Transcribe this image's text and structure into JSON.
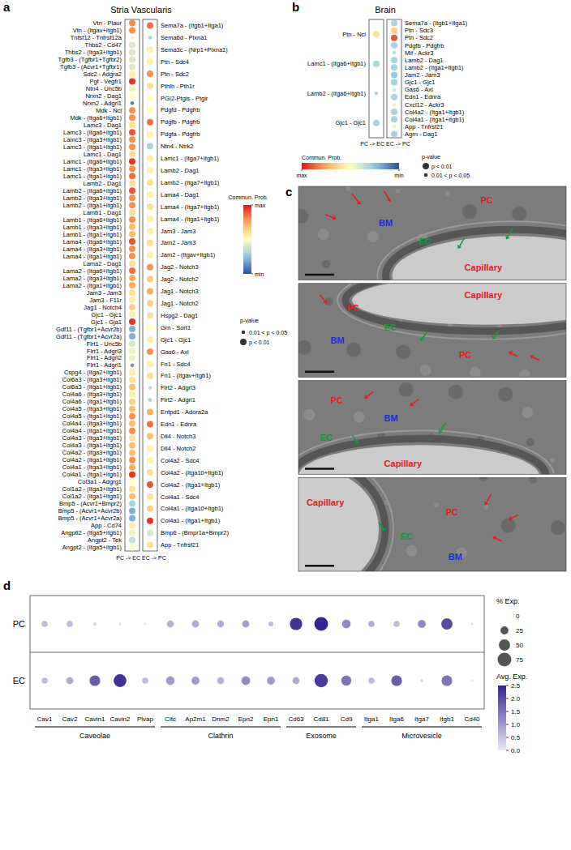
{
  "chart_data": [
    {
      "type": "dot",
      "label": "a",
      "title": "Stria Vascularis",
      "series": [
        {
          "name": "PC -> EC",
          "categories": [
            "Vtn - Plaur",
            "Vtn - (Itgav+Itgb1)",
            "Tnfsf12 - Tnfrsf12a",
            "Thbs2 - Cd47",
            "Thbs2 - (Itga3+Itgb1)",
            "Tgfb3 - (Tgfbr1+Tgfbr2)",
            "Tgfb3 - (Acvr1+Tgfbr1)",
            "Sdc2 - Adgra2",
            "Pgf - Vegfr1",
            "Ntn4 - Unc5b",
            "Nrxn2 - Dag1",
            "Nrxn2 - Adgrl1",
            "Mdk - Ncl",
            "Mdk - (Itga6+Itgb1)",
            "Lamc3 - Dag1",
            "Lamc3 - (Itga6+Itgb1)",
            "Lamc3 - (Itga3+Itgb1)",
            "Lamc3 - (Itga1+Itgb1)",
            "Lamc1 - Dag1",
            "Lamc1 - (Itga6+Itgb1)",
            "Lamc1 - (Itga3+Itgb1)",
            "Lamc1 - (Itga1+Itgb1)",
            "Lamb2 - Dag1",
            "Lamb2 - (Itga6+Itgb1)",
            "Lamb2 - (Itga3+Itgb1)",
            "Lamb2 - (Itga1+Itgb1)",
            "Lamb1 - Dag1",
            "Lamb1 - (Itga6+Itgb1)",
            "Lamb1 - (Itga3+Itgb1)",
            "Lamb1 - (Itga1+Itgb1)",
            "Lama4 - (Itga6+Itgb1)",
            "Lama4 - (Itga3+Itgb1)",
            "Lama4 - (Itga1+Itgb1)",
            "Lama2 - Dag1",
            "Lama2 - (Itga6+Itgb1)",
            "Lama2 - (Itga3+Itgb1)",
            "Lama2 - (Itga1+Itgb1)",
            "Jam3 - Jam3",
            "Jam3 - F11r",
            "Jag1 - Notch4",
            "Gjc1 - Gjc1",
            "Gjc1 - Gja1",
            "Gdf11 - (Tgfbr1+Acvr2b)",
            "Gdf11 - (Tgfbr1+Acvr2a)",
            "Flrt1 - Unc5b",
            "Flrt1 - Adgrl3",
            "Flrt1 - Adgrl2",
            "Flrt1 - Adgrl1",
            "Cspg4 - (Itga2+Itgb1)",
            "Col6a3 - (Itga3+Itgb1)",
            "Col6a3 - (Itga1+Itgb1)",
            "Col4a6 - (Itga3+Itgb1)",
            "Col4a6 - (Itga1+Itgb1)",
            "Col4a5 - (Itga3+Itgb1)",
            "Col4a5 - (Itga1+Itgb1)",
            "Col4a4 - (Itga3+Itgb1)",
            "Col4a4 - (Itga1+Itgb1)",
            "Col4a3 - (Itga3+Itgb1)",
            "Col4a3 - (Itga1+Itgb1)",
            "Col4a2 - (Itga3+Itgb1)",
            "Col4a2 - (Itga1+Itgb1)",
            "Col4a1 - (Itga3+Itgb1)",
            "Col4a1 - (Itga1+Itgb1)",
            "Col3a1 - Adgrg1",
            "Col1a2 - (Itga3+Itgb1)",
            "Col1a2 - (Itga1+Itgb1)",
            "Bmp5 - (Acvr1+Bmpr2)",
            "Bmp5 - (Acvr1+Acvr2b)",
            "Bmp5 - (Acvr1+Acvr2a)",
            "App - Cd74",
            "Angptl2 - (Itga5+Itgb1)",
            "Angpt2 - Tek",
            "Angpt2 - (Itga5+Itgb1)"
          ],
          "values": [
            0.8,
            0.8,
            0.45,
            0.4,
            0.4,
            0.4,
            0.4,
            0.55,
            0.95,
            0.45,
            0.5,
            0.1,
            0.8,
            0.8,
            0.6,
            0.9,
            0.8,
            0.8,
            0.6,
            0.95,
            0.8,
            0.85,
            0.6,
            0.9,
            0.8,
            0.8,
            0.6,
            0.8,
            0.7,
            0.7,
            0.9,
            0.8,
            0.8,
            0.6,
            0.85,
            0.75,
            0.75,
            0.6,
            0.55,
            0.65,
            0.55,
            0.95,
            0.2,
            0.2,
            0.4,
            0.45,
            0.45,
            0.15,
            0.55,
            0.6,
            0.7,
            0.55,
            0.65,
            0.7,
            0.8,
            0.7,
            0.8,
            0.6,
            0.7,
            0.7,
            0.8,
            0.75,
            0.95,
            0.5,
            0.6,
            0.7,
            0.3,
            0.2,
            0.2,
            0.55,
            0.45,
            0.35,
            0.5
          ],
          "p_class": [
            1,
            1,
            0,
            1,
            1,
            1,
            1,
            1,
            1,
            1,
            1,
            0,
            1,
            1,
            1,
            1,
            1,
            1,
            1,
            1,
            1,
            1,
            1,
            1,
            1,
            1,
            1,
            1,
            1,
            1,
            1,
            1,
            1,
            1,
            1,
            1,
            1,
            1,
            1,
            1,
            1,
            1,
            1,
            1,
            1,
            1,
            1,
            0,
            1,
            1,
            1,
            1,
            1,
            1,
            1,
            1,
            1,
            1,
            1,
            1,
            1,
            1,
            1,
            1,
            1,
            1,
            1,
            1,
            1,
            1,
            1,
            1,
            1
          ]
        },
        {
          "name": "EC -> PC",
          "categories": [
            "Sema7a - (Itgb1+Itga1)",
            "Sema6d - Plxna1",
            "Sema3c - (Nrp1+Plxna1)",
            "Ptn - Sdc4",
            "Ptn - Sdc2",
            "Pthlh - Pth1r",
            "PGI2-Ptgis - Ptgir",
            "Pdgfd - Pdgfrb",
            "Pdgfb - Pdgfrb",
            "Pdgfa - Pdgfrb",
            "Ntn4 - Ntrk2",
            "Lamc1 - (Itga7+Itgb1)",
            "Lamb2 - Dag1",
            "Lamb2 - (Itga7+Itgb1)",
            "Lama4 - Dag1",
            "Lama4 - (Itga7+Itgb1)",
            "Lama4 - (Itga1+Itgb1)",
            "Jam3 - Jam3",
            "Jam2 - Jam3",
            "Jam2 - (Itgav+Itgb1)",
            "Jag2 - Notch3",
            "Jag2 - Notch2",
            "Jag1 - Notch3",
            "Jag1 - Notch2",
            "Hspg2 - Dag1",
            "Grn - Sort1",
            "Gjc1 - Gjc1",
            "Gas6 - Axl",
            "Fn1 - Sdc4",
            "Fn1 - (Itgav+Itgb1)",
            "Flrt2 - Adgrl3",
            "Flrt2 - Adgrl1",
            "Entpd1 - Adora2a",
            "Edn1 - Ednra",
            "Dll4 - Notch3",
            "Dll4 - Notch2",
            "Col4a2 - Sdc4",
            "Col4a2 - (Itga10+Itgb1)",
            "Col4a2 - (Itga1+Itgb1)",
            "Col4a1 - Sdc4",
            "Col4a1 - (Itga10+Itgb1)",
            "Col4a1 - (Itga1+Itgb1)",
            "Bmp6 - (Bmpr1a+Bmpr2)",
            "App - Tnfrsf21"
          ],
          "values": [
            0.85,
            0.3,
            0.55,
            0.55,
            0.8,
            0.6,
            0.5,
            0.5,
            0.85,
            0.55,
            0.3,
            0.55,
            0.55,
            0.6,
            0.55,
            0.6,
            0.55,
            0.55,
            0.6,
            0.55,
            0.8,
            0.65,
            0.75,
            0.65,
            0.6,
            0.5,
            0.55,
            0.8,
            0.55,
            0.6,
            0.35,
            0.3,
            0.75,
            0.85,
            0.7,
            0.55,
            0.55,
            0.6,
            0.9,
            0.6,
            0.65,
            0.95,
            0.4,
            0.6
          ],
          "p_class": [
            1,
            0,
            1,
            1,
            1,
            1,
            1,
            1,
            1,
            1,
            1,
            1,
            1,
            1,
            1,
            1,
            1,
            1,
            1,
            1,
            1,
            1,
            1,
            1,
            1,
            1,
            1,
            1,
            1,
            1,
            0,
            0,
            1,
            1,
            1,
            1,
            1,
            1,
            1,
            1,
            1,
            1,
            1,
            1
          ]
        }
      ],
      "colorbar": {
        "title": "Commun. Prob.",
        "range": [
          0,
          1
        ],
        "ticks": [
          {
            "value": 1,
            "label": "max"
          },
          {
            "value": 0,
            "label": "min"
          }
        ]
      },
      "size_legend": {
        "title": "p-value",
        "entries": [
          {
            "label": "0.01 < p < 0.05",
            "p_class": 0
          },
          {
            "label": "p < 0.01",
            "p_class": 1
          }
        ]
      }
    },
    {
      "type": "dot",
      "label": "b",
      "title": "Brain",
      "series": [
        {
          "name": "PC -> EC",
          "categories": [
            "Ptn - Ncl",
            "Lamc1 - (Itga6+Itgb1)",
            "Lamb2 - (Itga6+Itgb1)",
            "Gjc1 - Gjc1"
          ],
          "values": [
            0.6,
            0.3,
            0.3,
            0.3
          ],
          "p_class": [
            1,
            1,
            0,
            1
          ]
        },
        {
          "name": "EC -> PC",
          "categories": [
            "Sema7a - (Itgb1+Itga1)",
            "Ptn - Sdc3",
            "Ptn - Sdc2",
            "Pdgfb - Pdgfrb",
            "Mif - Ackr3",
            "Lamb2 - Dag1",
            "Lamb2 - (Itga1+Itgb1)",
            "Jam2 - Jam3",
            "Gjc1 - Gjc1",
            "Gas6 - Axl",
            "Edn1 - Ednra",
            "Cxcl12 - Ackr3",
            "Col4a2 - (Itga1+Itgb1)",
            "Col4a1 - (Itga1+Itgb1)",
            "App - Tnfrsf21",
            "Agrn - Dag1"
          ],
          "values": [
            0.3,
            0.65,
            0.9,
            0.3,
            0.35,
            0.3,
            0.3,
            0.25,
            0.3,
            0.4,
            0.3,
            0.45,
            0.3,
            0.3,
            0.45,
            0.3
          ],
          "p_class": [
            1,
            1,
            1,
            1,
            0,
            1,
            1,
            1,
            1,
            0,
            1,
            0,
            1,
            1,
            0,
            1
          ]
        }
      ],
      "colorbar": {
        "title": "Commun. Prob.",
        "range": [
          0,
          1
        ],
        "ticks": [
          {
            "value": 1,
            "label": "max"
          },
          {
            "value": 0,
            "label": "min"
          }
        ]
      },
      "size_legend": {
        "title": "p-value",
        "entries": [
          {
            "label": "p < 0.01",
            "p_class": 1
          },
          {
            "label": "0.01 < p < 0.05",
            "p_class": 0
          }
        ]
      }
    },
    {
      "type": "dot",
      "label": "d",
      "groups": [
        {
          "name": "Caveolae",
          "categories": [
            "Cav1",
            "Cav2",
            "Cavin1",
            "Cavin2",
            "Plvap"
          ]
        },
        {
          "name": "Clathrin",
          "categories": [
            "Cltc",
            "Ap2m1",
            "Dnm2",
            "Epn2",
            "Epn1"
          ]
        },
        {
          "name": "Exosome",
          "categories": [
            "Cd63",
            "Cd81",
            "Cd9"
          ]
        },
        {
          "name": "Microvesicle",
          "categories": [
            "Itga1",
            "Itga6",
            "Itga7",
            "Itgb1",
            "Cd40"
          ]
        }
      ],
      "series": [
        {
          "name": "PC",
          "values": [
            0.6,
            0.6,
            0.2,
            0.1,
            0.1,
            0.7,
            0.8,
            0.8,
            1.0,
            0.6,
            2.3,
            2.5,
            1.2,
            0.8,
            0.6,
            1.2,
            2.0,
            0.1
          ],
          "pct": [
            15,
            15,
            5,
            3,
            2,
            20,
            20,
            18,
            20,
            10,
            60,
            75,
            30,
            15,
            15,
            25,
            50,
            2
          ]
        },
        {
          "name": "EC",
          "values": [
            0.6,
            0.8,
            1.8,
            2.3,
            0.6,
            1.0,
            1.0,
            0.7,
            1.2,
            1.0,
            0.8,
            2.2,
            1.5,
            0.6,
            1.8,
            0.2,
            1.5,
            0.1
          ],
          "pct": [
            15,
            20,
            45,
            65,
            15,
            30,
            25,
            20,
            30,
            25,
            20,
            70,
            40,
            15,
            45,
            5,
            45,
            2
          ]
        }
      ],
      "colorbar": {
        "title": "Avg. Exp.",
        "range": [
          0,
          2.5
        ],
        "ticks": [
          {
            "value": 0,
            "label": "0.0"
          },
          {
            "value": 0.5,
            "label": "0.5"
          },
          {
            "value": 1,
            "label": "1.0"
          },
          {
            "value": 1.5,
            "label": "1.5"
          },
          {
            "value": 2,
            "label": "2.0"
          },
          {
            "value": 2.5,
            "label": "2.5"
          }
        ]
      },
      "size_legend": {
        "title": "% Exp.",
        "values": [
          0,
          25,
          50,
          75
        ]
      }
    }
  ],
  "micrograph": {
    "label": "c",
    "images": [
      {
        "labels": [
          {
            "text": "PC",
            "color": "#e02020"
          },
          {
            "text": "BM",
            "color": "#1f2fd0"
          },
          {
            "text": "EC",
            "color": "#129a3a"
          },
          {
            "text": "Capillary",
            "color": "#e02020"
          }
        ]
      },
      {
        "labels": [
          {
            "text": "Capillary",
            "color": "#e02020"
          },
          {
            "text": "PC",
            "color": "#e02020"
          },
          {
            "text": "EC",
            "color": "#129a3a"
          },
          {
            "text": "BM",
            "color": "#1f2fd0"
          },
          {
            "text": "PC",
            "color": "#e02020"
          }
        ]
      },
      {
        "labels": [
          {
            "text": "PC",
            "color": "#e02020"
          },
          {
            "text": "BM",
            "color": "#1f2fd0"
          },
          {
            "text": "EC",
            "color": "#129a3a"
          },
          {
            "text": "Capillary",
            "color": "#e02020"
          }
        ]
      },
      {
        "labels": [
          {
            "text": "Capillary",
            "color": "#e02020"
          },
          {
            "text": "PC",
            "color": "#e02020"
          },
          {
            "text": "EC",
            "color": "#129a3a"
          },
          {
            "text": "BM",
            "color": "#1f2fd0"
          }
        ]
      }
    ]
  }
}
